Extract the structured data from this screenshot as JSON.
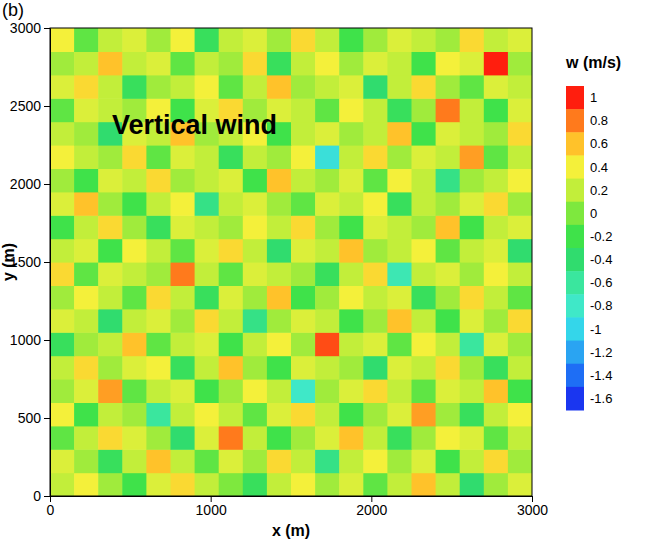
{
  "chart_data": {
    "type": "heatmap",
    "panel_label": "(b)",
    "title": "Vertical wind",
    "x_label": "x (m)",
    "y_label": "y (m)",
    "xlim": [
      0,
      3000
    ],
    "xticks": [
      0,
      1000,
      2000,
      3000
    ],
    "ylim": [
      0,
      3000
    ],
    "yticks": [
      0,
      500,
      1000,
      1500,
      2000,
      2500,
      3000
    ],
    "x": [
      75,
      225,
      375,
      525,
      675,
      825,
      975,
      1125,
      1275,
      1425,
      1575,
      1725,
      1875,
      2025,
      2175,
      2325,
      2475,
      2625,
      2775,
      2925
    ],
    "y": [
      75,
      225,
      375,
      525,
      675,
      825,
      975,
      1125,
      1275,
      1425,
      1575,
      1725,
      1875,
      2025,
      2175,
      2325,
      2475,
      2625,
      2775,
      2925
    ],
    "z": [
      [
        0.2,
        0.4,
        0.1,
        -0.2,
        0.3,
        0.5,
        0.2,
        0,
        -0.3,
        0.2,
        0.4,
        0.1,
        0.3,
        -0.1,
        0.2,
        0.6,
        0.2,
        -0.4,
        0.1,
        0.3
      ],
      [
        0.3,
        0.1,
        -0.3,
        0.2,
        0.6,
        0.2,
        -0.1,
        0.3,
        0.1,
        0.5,
        0.2,
        -0.5,
        0.2,
        0.4,
        0.1,
        0.3,
        -0.2,
        0.2,
        0.5,
        0.1
      ],
      [
        -0.1,
        0.2,
        0.5,
        0.3,
        0.1,
        -0.4,
        0.3,
        0.8,
        0.2,
        -0.2,
        0.1,
        0.3,
        0.6,
        0.2,
        -0.3,
        0.1,
        0.4,
        0.3,
        -0.1,
        0.2
      ],
      [
        0.4,
        -0.2,
        0.2,
        0.1,
        -0.6,
        0.2,
        0.4,
        0.2,
        -0.1,
        0.3,
        0.5,
        0.2,
        -0.2,
        0.1,
        0.3,
        0.7,
        0.1,
        -0.3,
        0.2,
        0.4
      ],
      [
        0.1,
        0.3,
        0.7,
        -0.1,
        0.2,
        0.3,
        -0.2,
        0.1,
        0.4,
        0.2,
        -0.8,
        0.1,
        0.3,
        0.5,
        0.2,
        -0.1,
        0.3,
        0.2,
        0.6,
        -0.2
      ],
      [
        0.2,
        0.5,
        0.1,
        0.3,
        0.4,
        -0.3,
        0.2,
        0.6,
        0.1,
        -0.2,
        0.3,
        0.2,
        0.1,
        -0.4,
        0.3,
        0.2,
        0.5,
        0.1,
        -0.3,
        0.2
      ],
      [
        -0.3,
        0.1,
        0.2,
        0.6,
        -0.1,
        0.2,
        0.3,
        -0.2,
        0.2,
        0.4,
        0.1,
        0.9,
        0.2,
        0.3,
        -0.1,
        0.4,
        0.2,
        -0.6,
        0.3,
        0.1
      ],
      [
        0.3,
        0.2,
        -0.4,
        0.2,
        0.3,
        0.1,
        0.5,
        0.2,
        -0.5,
        0.1,
        0.3,
        0.2,
        -0.2,
        0.1,
        0.6,
        0.2,
        -0.2,
        0.3,
        0.1,
        0.5
      ],
      [
        0.1,
        0.4,
        0.2,
        -0.1,
        0.5,
        0.2,
        -0.3,
        0.3,
        0.1,
        0.6,
        -0.2,
        0.1,
        0.4,
        0.2,
        0.3,
        -0.3,
        0.1,
        0.5,
        0.2,
        -0.1
      ],
      [
        0.5,
        -0.1,
        0.3,
        0.2,
        0.1,
        0.8,
        0.2,
        -0.1,
        0.3,
        0.2,
        0.1,
        -0.3,
        0.2,
        0.5,
        -0.7,
        0.2,
        0.3,
        0.1,
        0.4,
        0.2
      ],
      [
        0.2,
        0.3,
        -0.2,
        0.4,
        0.2,
        -0.1,
        0.3,
        0.5,
        0.2,
        -0.4,
        0.3,
        0.2,
        0.6,
        0.1,
        0.2,
        0.4,
        -0.1,
        0.2,
        0.3,
        -0.4
      ],
      [
        -0.2,
        0.2,
        0.5,
        0.1,
        -0.3,
        0.3,
        0.2,
        0.1,
        0.4,
        0.2,
        0.5,
        0.1,
        -0.2,
        0.3,
        0.2,
        0.1,
        0.6,
        -0.2,
        0.2,
        0.3
      ],
      [
        0.3,
        0.6,
        0.1,
        -0.2,
        0.2,
        0.4,
        -0.5,
        0.2,
        0.3,
        0.1,
        -0.1,
        0.3,
        0.2,
        0.4,
        -0.3,
        0.2,
        0.1,
        0.3,
        0.5,
        0.1
      ],
      [
        0.1,
        -0.2,
        0.3,
        0.2,
        0.5,
        0.1,
        0.2,
        0.3,
        -0.2,
        0.6,
        0.2,
        0.1,
        0.3,
        -0.1,
        0.4,
        0.2,
        -0.5,
        0.1,
        0.2,
        0.4
      ],
      [
        0.4,
        0.2,
        0.1,
        0.5,
        -0.1,
        0.3,
        0.2,
        -0.3,
        0.2,
        0.1,
        0.4,
        -0.9,
        0.2,
        0.5,
        0.1,
        0.3,
        0.2,
        0.7,
        -0.1,
        0.2
      ],
      [
        0.2,
        0.1,
        -0.4,
        0.3,
        0.2,
        0.6,
        0.1,
        0.2,
        0.4,
        -0.2,
        0.2,
        0.3,
        0.1,
        0.2,
        0.6,
        -0.2,
        0.3,
        0.2,
        0.1,
        0.5
      ],
      [
        -0.1,
        0.3,
        0.2,
        0.1,
        0.4,
        -0.2,
        0.3,
        0.5,
        0.1,
        0.3,
        0.2,
        -0.1,
        0.4,
        0.2,
        -0.3,
        0.1,
        0.8,
        0.2,
        -0.2,
        0.3
      ],
      [
        0.3,
        0.5,
        0.2,
        -0.3,
        0.1,
        0.2,
        0.4,
        -0.1,
        0.2,
        0.6,
        0.1,
        0.2,
        0.3,
        -0.4,
        0.2,
        0.5,
        0.1,
        -0.1,
        0.3,
        0.2
      ],
      [
        0.1,
        0.2,
        0.6,
        0.2,
        0.3,
        -0.1,
        0.2,
        0.1,
        0.5,
        -0.3,
        0.2,
        0.4,
        0.1,
        0.3,
        0.2,
        -0.2,
        0.4,
        0.3,
        1,
        0.1
      ],
      [
        0.4,
        -0.1,
        0.2,
        0.3,
        0.1,
        0.4,
        -0.3,
        0.2,
        0.3,
        0.1,
        0.5,
        0.2,
        -0.2,
        0.1,
        0.3,
        0.2,
        0.1,
        0.5,
        0.2,
        0.3
      ]
    ],
    "colorbar": {
      "label": "w (m/s)",
      "range": [
        -1.7,
        1.1
      ],
      "ticks": [
        1,
        0.8,
        0.6,
        0.4,
        0.2,
        0,
        -0.2,
        -0.4,
        -0.6,
        -0.8,
        -1,
        -1.2,
        -1.4,
        -1.6
      ]
    }
  }
}
